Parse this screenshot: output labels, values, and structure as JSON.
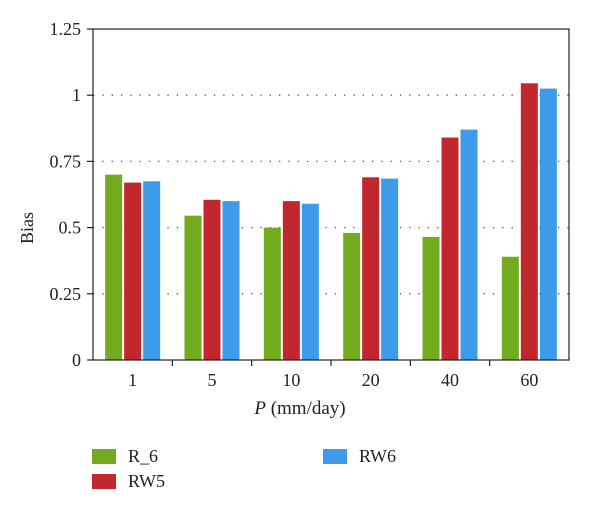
{
  "chart_data": {
    "type": "bar",
    "categories": [
      "1",
      "5",
      "10",
      "20",
      "40",
      "60"
    ],
    "series": [
      {
        "name": "R_6",
        "color": "#72ac1e",
        "values": [
          0.7,
          0.545,
          0.5,
          0.48,
          0.465,
          0.39
        ]
      },
      {
        "name": "RW5",
        "color": "#c1272d",
        "values": [
          0.67,
          0.605,
          0.6,
          0.69,
          0.84,
          1.045
        ]
      },
      {
        "name": "RW6",
        "color": "#3d9be9",
        "values": [
          0.675,
          0.6,
          0.59,
          0.685,
          0.87,
          1.025
        ]
      }
    ],
    "ylabel": "Bias",
    "xlabel_var": "P",
    "xlabel_unit": " (mm/day)",
    "ylim": [
      0,
      1.25
    ],
    "yticks": [
      "0",
      "0.25",
      "0.5",
      "0.75",
      "1",
      "1.25"
    ],
    "grid": "horizontal dotted",
    "legend_position": "bottom"
  }
}
